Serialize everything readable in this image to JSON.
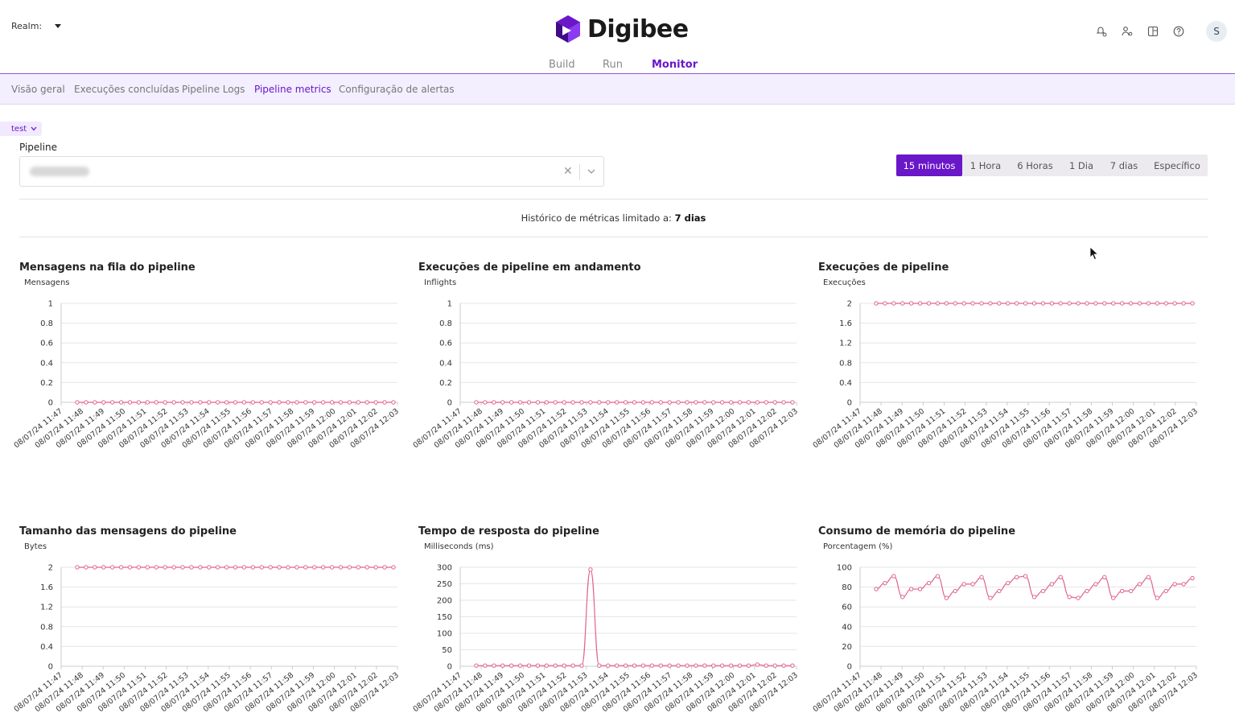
{
  "header": {
    "realm_label": "Realm:",
    "logo_text": "Digibee",
    "brand_color": "#6a16c9",
    "nav": [
      {
        "label": "Build",
        "active": false
      },
      {
        "label": "Run",
        "active": false
      },
      {
        "label": "Monitor",
        "active": true
      }
    ],
    "icons": [
      "bell-settings-icon",
      "user-settings-icon",
      "panel-icon",
      "help-icon"
    ],
    "avatar_initial": "S"
  },
  "subnav": [
    {
      "label": "Visão geral",
      "active": false
    },
    {
      "label": "Execuções concluídas",
      "active": false
    },
    {
      "label": "Pipeline Logs",
      "active": false
    },
    {
      "label": "Pipeline metrics",
      "active": true
    },
    {
      "label": "Configuração de alertas",
      "active": false
    }
  ],
  "environment": "test",
  "filters": {
    "pipeline_label": "Pipeline",
    "time_ranges": [
      {
        "label": "15 minutos",
        "active": true
      },
      {
        "label": "1 Hora",
        "active": false
      },
      {
        "label": "6 Horas",
        "active": false
      },
      {
        "label": "1 Dia",
        "active": false
      },
      {
        "label": "7 dias",
        "active": false
      },
      {
        "label": "Específico",
        "active": false
      }
    ]
  },
  "history_notice": {
    "text": "Histórico de métricas limitado a:",
    "value": "7 dias"
  },
  "chart_data": [
    {
      "type": "line",
      "title": "Mensagens na fila do pipeline",
      "ylabel": "Mensagens",
      "ylim": [
        0,
        1
      ],
      "yticks": [
        "0",
        "0.2",
        "0.4",
        "0.6",
        "0.8",
        "1"
      ],
      "xticks": [
        "08/07/24 11:47",
        "08/07/24 11:48",
        "08/07/24 11:49",
        "08/07/24 11:50",
        "08/07/24 11:51",
        "08/07/24 11:52",
        "08/07/24 11:53",
        "08/07/24 11:54",
        "08/07/24 11:55",
        "08/07/24 11:56",
        "08/07/24 11:57",
        "08/07/24 11:58",
        "08/07/24 11:59",
        "08/07/24 12:00",
        "08/07/24 12:01",
        "08/07/24 12:02",
        "08/07/24 12:03"
      ],
      "grid": true,
      "series": [
        {
          "values": [
            0,
            0,
            0,
            0,
            0,
            0,
            0,
            0,
            0,
            0,
            0,
            0,
            0,
            0,
            0,
            0,
            0,
            0,
            0,
            0,
            0,
            0,
            0,
            0,
            0,
            0,
            0,
            0,
            0,
            0,
            0,
            0,
            0,
            0,
            0,
            0,
            0
          ]
        }
      ]
    },
    {
      "type": "line",
      "title": "Execuções de pipeline em andamento",
      "ylabel": "Inflights",
      "ylim": [
        0,
        1
      ],
      "yticks": [
        "0",
        "0.2",
        "0.4",
        "0.6",
        "0.8",
        "1"
      ],
      "xticks": [
        "08/07/24 11:47",
        "08/07/24 11:48",
        "08/07/24 11:49",
        "08/07/24 11:50",
        "08/07/24 11:51",
        "08/07/24 11:52",
        "08/07/24 11:53",
        "08/07/24 11:54",
        "08/07/24 11:55",
        "08/07/24 11:56",
        "08/07/24 11:57",
        "08/07/24 11:58",
        "08/07/24 11:59",
        "08/07/24 12:00",
        "08/07/24 12:01",
        "08/07/24 12:02",
        "08/07/24 12:03"
      ],
      "grid": true,
      "series": [
        {
          "values": [
            0,
            0,
            0,
            0,
            0,
            0,
            0,
            0,
            0,
            0,
            0,
            0,
            0,
            0,
            0,
            0,
            0,
            0,
            0,
            0,
            0,
            0,
            0,
            0,
            0,
            0,
            0,
            0,
            0,
            0,
            0,
            0,
            0,
            0,
            0,
            0,
            0
          ]
        }
      ]
    },
    {
      "type": "line",
      "title": "Execuções de pipeline",
      "ylabel": "Execuções",
      "ylim": [
        0,
        2
      ],
      "yticks": [
        "0",
        "0.4",
        "0.8",
        "1.2",
        "1.6",
        "2"
      ],
      "xticks": [
        "08/07/24 11:47",
        "08/07/24 11:48",
        "08/07/24 11:49",
        "08/07/24 11:50",
        "08/07/24 11:51",
        "08/07/24 11:52",
        "08/07/24 11:53",
        "08/07/24 11:54",
        "08/07/24 11:55",
        "08/07/24 11:56",
        "08/07/24 11:57",
        "08/07/24 11:58",
        "08/07/24 11:59",
        "08/07/24 12:00",
        "08/07/24 12:01",
        "08/07/24 12:02",
        "08/07/24 12:03"
      ],
      "grid": true,
      "series": [
        {
          "values": [
            2,
            2,
            2,
            2,
            2,
            2,
            2,
            2,
            2,
            2,
            2,
            2,
            2,
            2,
            2,
            2,
            2,
            2,
            2,
            2,
            2,
            2,
            2,
            2,
            2,
            2,
            2,
            2,
            2,
            2,
            2,
            2,
            2,
            2,
            2,
            2,
            2
          ]
        }
      ]
    },
    {
      "type": "line",
      "title": "Tamanho das mensagens do pipeline",
      "ylabel": "Bytes",
      "ylim": [
        0,
        2
      ],
      "yticks": [
        "0",
        "0.4",
        "0.8",
        "1.2",
        "1.6",
        "2"
      ],
      "xticks": [
        "08/07/24 11:47",
        "08/07/24 11:48",
        "08/07/24 11:49",
        "08/07/24 11:50",
        "08/07/24 11:51",
        "08/07/24 11:52",
        "08/07/24 11:53",
        "08/07/24 11:54",
        "08/07/24 11:55",
        "08/07/24 11:56",
        "08/07/24 11:57",
        "08/07/24 11:58",
        "08/07/24 11:59",
        "08/07/24 12:00",
        "08/07/24 12:01",
        "08/07/24 12:02",
        "08/07/24 12:03"
      ],
      "grid": true,
      "series": [
        {
          "values": [
            2,
            2,
            2,
            2,
            2,
            2,
            2,
            2,
            2,
            2,
            2,
            2,
            2,
            2,
            2,
            2,
            2,
            2,
            2,
            2,
            2,
            2,
            2,
            2,
            2,
            2,
            2,
            2,
            2,
            2,
            2,
            2,
            2,
            2,
            2,
            2,
            2
          ]
        }
      ]
    },
    {
      "type": "line",
      "title": "Tempo de resposta do pipeline",
      "ylabel": "Milliseconds (ms)",
      "ylim": [
        0,
        300
      ],
      "yticks": [
        "0",
        "50",
        "100",
        "150",
        "200",
        "250",
        "300"
      ],
      "xticks": [
        "08/07/24 11:47",
        "08/07/24 11:48",
        "08/07/24 11:49",
        "08/07/24 11:50",
        "08/07/24 11:51",
        "08/07/24 11:52",
        "08/07/24 11:53",
        "08/07/24 11:54",
        "08/07/24 11:55",
        "08/07/24 11:56",
        "08/07/24 11:57",
        "08/07/24 11:58",
        "08/07/24 11:59",
        "08/07/24 12:00",
        "08/07/24 12:01",
        "08/07/24 12:02",
        "08/07/24 12:03"
      ],
      "grid": true,
      "series": [
        {
          "values": [
            2,
            2,
            2,
            2,
            2,
            2,
            2,
            2,
            2,
            2,
            2,
            2,
            2,
            293,
            2,
            2,
            2,
            2,
            2,
            2,
            2,
            2,
            2,
            2,
            2,
            2,
            2,
            2,
            2,
            2,
            2,
            2,
            5,
            2,
            2,
            2,
            2
          ]
        }
      ]
    },
    {
      "type": "line",
      "title": "Consumo de memória do pipeline",
      "ylabel": "Porcentagem (%)",
      "ylim": [
        0,
        100
      ],
      "yticks": [
        "0",
        "20",
        "40",
        "60",
        "80",
        "100"
      ],
      "xticks": [
        "08/07/24 11:47",
        "08/07/24 11:48",
        "08/07/24 11:49",
        "08/07/24 11:50",
        "08/07/24 11:51",
        "08/07/24 11:52",
        "08/07/24 11:53",
        "08/07/24 11:54",
        "08/07/24 11:55",
        "08/07/24 11:56",
        "08/07/24 11:57",
        "08/07/24 11:58",
        "08/07/24 11:59",
        "08/07/24 12:00",
        "08/07/24 12:01",
        "08/07/24 12:02",
        "08/07/24 12:03"
      ],
      "grid": true,
      "series": [
        {
          "values": [
            78,
            84,
            91,
            70,
            78,
            78,
            84,
            91,
            69,
            76,
            83,
            83,
            90,
            69,
            76,
            84,
            90,
            91,
            70,
            76,
            83,
            90,
            70,
            69,
            76,
            83,
            90,
            69,
            76,
            76,
            83,
            90,
            69,
            76,
            83,
            83,
            89
          ]
        }
      ]
    }
  ]
}
